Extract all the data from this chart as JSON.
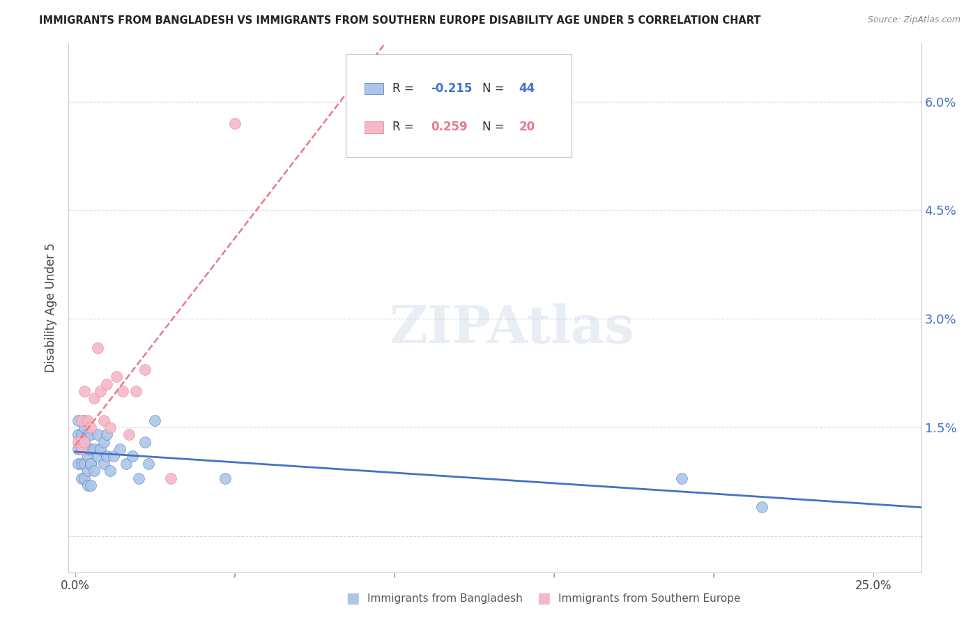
{
  "title": "IMMIGRANTS FROM BANGLADESH VS IMMIGRANTS FROM SOUTHERN EUROPE DISABILITY AGE UNDER 5 CORRELATION CHART",
  "source": "Source: ZipAtlas.com",
  "ylabel": "Disability Age Under 5",
  "legend_label1": "Immigrants from Bangladesh",
  "legend_label2": "Immigrants from Southern Europe",
  "r1": "-0.215",
  "n1": "44",
  "r2": "0.259",
  "n2": "20",
  "color1": "#adc6e8",
  "color2": "#f5b8c8",
  "color1_line": "#4472c4",
  "color2_line": "#e8788a",
  "yticks": [
    0.0,
    0.015,
    0.03,
    0.045,
    0.06
  ],
  "ytick_labels_right": [
    "",
    "1.5%",
    "3.0%",
    "4.5%",
    "6.0%"
  ],
  "xticks": [
    0.0,
    0.05,
    0.1,
    0.15,
    0.2,
    0.25
  ],
  "xtick_labels": [
    "0.0%",
    "",
    "",
    "",
    "",
    "25.0%"
  ],
  "xlim": [
    -0.002,
    0.265
  ],
  "ylim": [
    -0.005,
    0.068
  ],
  "bangladesh_x": [
    0.001,
    0.001,
    0.001,
    0.001,
    0.002,
    0.002,
    0.002,
    0.002,
    0.003,
    0.003,
    0.003,
    0.003,
    0.003,
    0.004,
    0.004,
    0.004,
    0.004,
    0.004,
    0.005,
    0.005,
    0.005,
    0.005,
    0.005,
    0.006,
    0.006,
    0.007,
    0.007,
    0.008,
    0.009,
    0.009,
    0.01,
    0.01,
    0.011,
    0.012,
    0.014,
    0.016,
    0.018,
    0.02,
    0.022,
    0.023,
    0.025,
    0.047,
    0.19,
    0.215
  ],
  "bangladesh_y": [
    0.012,
    0.014,
    0.016,
    0.01,
    0.008,
    0.012,
    0.014,
    0.01,
    0.013,
    0.015,
    0.01,
    0.008,
    0.016,
    0.007,
    0.009,
    0.011,
    0.014,
    0.012,
    0.007,
    0.01,
    0.012,
    0.014,
    0.01,
    0.009,
    0.012,
    0.011,
    0.014,
    0.012,
    0.013,
    0.01,
    0.011,
    0.014,
    0.009,
    0.011,
    0.012,
    0.01,
    0.011,
    0.008,
    0.013,
    0.01,
    0.016,
    0.008,
    0.008,
    0.004
  ],
  "southern_x": [
    0.001,
    0.002,
    0.002,
    0.003,
    0.003,
    0.004,
    0.005,
    0.006,
    0.007,
    0.008,
    0.009,
    0.01,
    0.011,
    0.013,
    0.015,
    0.017,
    0.019,
    0.022,
    0.03,
    0.05
  ],
  "southern_y": [
    0.013,
    0.016,
    0.012,
    0.02,
    0.013,
    0.016,
    0.015,
    0.019,
    0.026,
    0.02,
    0.016,
    0.021,
    0.015,
    0.022,
    0.02,
    0.014,
    0.02,
    0.023,
    0.008,
    0.057
  ],
  "watermark": "ZIPAtlas",
  "background_color": "#ffffff",
  "grid_color": "#d0d0d0",
  "title_color": "#222222",
  "source_color": "#888888",
  "right_axis_color": "#4472c4"
}
